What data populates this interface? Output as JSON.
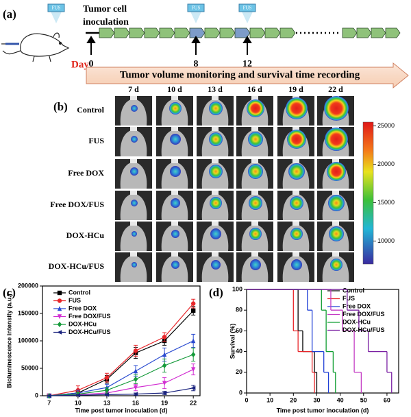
{
  "panel_a": {
    "label": "(a)",
    "fus_labels": [
      "FUS",
      "FUS",
      "FUS"
    ],
    "inoculation_lines": [
      "Tumor cell",
      "inoculation"
    ],
    "day_label": "Day",
    "days": [
      "0",
      "8",
      "12"
    ],
    "banner": "Tumor volume monitoring and survival time recording"
  },
  "panel_b": {
    "label": "(b)",
    "columns": [
      "7 d",
      "10 d",
      "13 d",
      "16 d",
      "19 d",
      "22 d"
    ],
    "rows": [
      "Control",
      "FUS",
      "Free DOX",
      "Free DOX/FUS",
      "DOX-HCu",
      "DOX-HCu/FUS"
    ],
    "colorbar_lim": [
      7000,
      25500
    ],
    "colorbar_ticks": [
      10000,
      15000,
      20000,
      25000
    ]
  },
  "chart_data": [
    {
      "type": "line",
      "panel_label": "(c)",
      "x_label": "Time post tumor inoculation (d)",
      "y_label": "Bioluminescence intensity (a.u.)",
      "x": [
        7,
        10,
        13,
        16,
        19,
        22
      ],
      "xlim": [
        6.3,
        22.7
      ],
      "xticks": [
        7,
        10,
        13,
        16,
        19,
        22
      ],
      "ylim": [
        0,
        200000
      ],
      "yticks": [
        0,
        50000,
        100000,
        150000,
        200000
      ],
      "legend": "upper-left",
      "series": [
        {
          "name": "Control",
          "color": "#000000",
          "marker": "square",
          "values": [
            0,
            5000,
            30000,
            78000,
            100000,
            155000
          ],
          "errors": [
            1000,
            6000,
            7000,
            10000,
            8000,
            8000
          ]
        },
        {
          "name": "FUS",
          "color": "#e8262a",
          "marker": "circle",
          "values": [
            0,
            10000,
            33000,
            82000,
            107000,
            168000
          ],
          "errors": [
            1000,
            8000,
            8000,
            10000,
            8000,
            8000
          ]
        },
        {
          "name": "Free DOX",
          "color": "#2a4bd0",
          "marker": "triangle-up",
          "values": [
            0,
            5000,
            15000,
            45000,
            75000,
            100000
          ],
          "errors": [
            1000,
            5000,
            6000,
            10000,
            12000,
            12000
          ]
        },
        {
          "name": "Free DOX/FUS",
          "color": "#d22fd2",
          "marker": "triangle-down",
          "values": [
            0,
            2000,
            5000,
            15000,
            23000,
            48000
          ],
          "errors": [
            500,
            2000,
            4000,
            6000,
            10000,
            10000
          ]
        },
        {
          "name": "DOX-HCu",
          "color": "#159a3a",
          "marker": "diamond",
          "values": [
            0,
            3000,
            10000,
            30000,
            55000,
            75000
          ],
          "errors": [
            500,
            3000,
            5000,
            8000,
            12000,
            12000
          ]
        },
        {
          "name": "DOX-HCu/FUS",
          "color": "#1a237e",
          "marker": "triangle-left",
          "values": [
            0,
            1000,
            2000,
            3000,
            5000,
            14000
          ],
          "errors": [
            300,
            1000,
            1500,
            2000,
            3000,
            5000
          ]
        }
      ]
    },
    {
      "type": "step",
      "panel_label": "(d)",
      "x_label": "Time post tumor inoculation (d)",
      "y_label": "Survival (%)",
      "xlim": [
        0,
        65
      ],
      "xticks": [
        0,
        10,
        20,
        30,
        40,
        50,
        60
      ],
      "ylim": [
        0,
        100
      ],
      "yticks": [
        0,
        20,
        40,
        60,
        80,
        100
      ],
      "legend": "upper-right",
      "series": [
        {
          "name": "Control",
          "color": "#000000",
          "x": [
            0,
            22,
            24,
            29,
            30
          ],
          "values": [
            100,
            60,
            40,
            20,
            0
          ]
        },
        {
          "name": "FUS",
          "color": "#e8262a",
          "x": [
            0,
            20,
            22,
            28,
            29
          ],
          "values": [
            100,
            60,
            40,
            20,
            0
          ]
        },
        {
          "name": "Free DOX",
          "color": "#1f3fd6",
          "x": [
            0,
            26,
            28,
            33,
            35
          ],
          "values": [
            100,
            80,
            40,
            20,
            0
          ]
        },
        {
          "name": "Free DOX/FUS",
          "color": "#c43bc4",
          "x": [
            0,
            36,
            41,
            46,
            49
          ],
          "values": [
            100,
            80,
            60,
            20,
            0
          ]
        },
        {
          "name": "DOX-HCu",
          "color": "#0f9d30",
          "x": [
            0,
            32,
            34,
            37,
            38
          ],
          "values": [
            100,
            80,
            40,
            20,
            0
          ]
        },
        {
          "name": "DOX-HCu/FUS",
          "color": "#7a1fa2",
          "x": [
            0,
            43,
            48,
            52,
            60,
            62
          ],
          "values": [
            100,
            80,
            60,
            40,
            20,
            0
          ]
        }
      ]
    }
  ]
}
